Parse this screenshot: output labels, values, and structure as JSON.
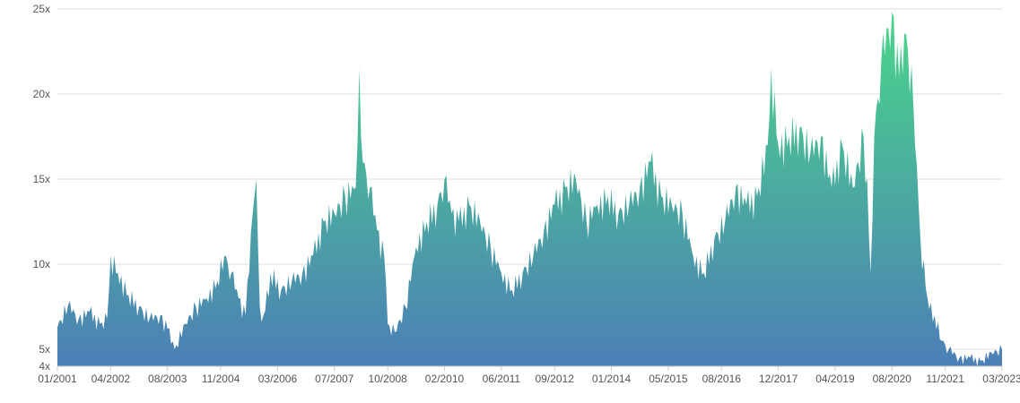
{
  "chart_data": {
    "type": "area",
    "title": "",
    "xlabel": "",
    "ylabel": "",
    "ylim": [
      4,
      25
    ],
    "y_ticks": [
      {
        "value": 25,
        "label": "25x"
      },
      {
        "value": 20,
        "label": "20x"
      },
      {
        "value": 15,
        "label": "15x"
      },
      {
        "value": 10,
        "label": "10x"
      },
      {
        "value": 5,
        "label": "5x"
      },
      {
        "value": 4,
        "label": "4x"
      }
    ],
    "x_ticks": [
      "01/2001",
      "04/2002",
      "08/2003",
      "11/2004",
      "03/2006",
      "07/2007",
      "10/2008",
      "02/2010",
      "06/2011",
      "09/2012",
      "01/2014",
      "05/2015",
      "08/2016",
      "12/2017",
      "04/2019",
      "08/2020",
      "11/2021",
      "03/2023"
    ],
    "grid": true,
    "legend": "none",
    "gradient": {
      "top": "#4ad68a",
      "bottom": "#4c7fb6"
    },
    "series": [
      {
        "x": [
          "2001-01",
          "2001-04",
          "2001-07",
          "2001-10",
          "2002-01",
          "2002-03",
          "2002-04",
          "2002-06",
          "2002-09",
          "2002-12",
          "2003-03",
          "2003-06",
          "2003-08",
          "2003-10",
          "2004-01",
          "2004-04",
          "2004-07",
          "2004-10",
          "2004-12",
          "2005-02",
          "2005-04",
          "2005-06",
          "2005-08",
          "2005-09",
          "2005-10",
          "2005-11",
          "2006-01",
          "2006-04",
          "2006-07",
          "2006-10",
          "2007-01",
          "2007-04",
          "2007-07",
          "2007-10",
          "2008-01",
          "2008-02",
          "2008-03",
          "2008-05",
          "2008-07",
          "2008-09",
          "2008-10",
          "2008-12",
          "2009-03",
          "2009-06",
          "2009-09",
          "2009-12",
          "2010-02",
          "2010-04",
          "2010-06",
          "2010-09",
          "2010-12",
          "2011-03",
          "2011-06",
          "2011-09",
          "2011-12",
          "2012-03",
          "2012-06",
          "2012-09",
          "2012-12",
          "2013-03",
          "2013-06",
          "2013-09",
          "2013-12",
          "2014-03",
          "2014-06",
          "2014-09",
          "2014-12",
          "2015-03",
          "2015-06",
          "2015-09",
          "2015-12",
          "2016-03",
          "2016-06",
          "2016-09",
          "2016-12",
          "2017-03",
          "2017-06",
          "2017-09",
          "2017-10",
          "2017-12",
          "2018-03",
          "2018-06",
          "2018-09",
          "2018-12",
          "2019-03",
          "2019-06",
          "2019-09",
          "2019-12",
          "2020-01",
          "2020-02",
          "2020-03",
          "2020-05",
          "2020-08",
          "2020-10",
          "2020-12",
          "2021-02",
          "2021-04",
          "2021-06",
          "2021-08",
          "2021-10",
          "2021-12",
          "2022-03",
          "2022-06",
          "2022-09",
          "2022-12",
          "2023-03"
        ],
        "values": [
          6.3,
          7.6,
          6.8,
          7.2,
          6.5,
          6.8,
          10.5,
          9.5,
          8.2,
          7.5,
          6.8,
          7.0,
          6.2,
          5.0,
          6.5,
          7.5,
          8.0,
          9.0,
          10.5,
          9.5,
          8.0,
          7.0,
          13.0,
          15.0,
          7.5,
          7.0,
          9.5,
          8.5,
          9.0,
          9.5,
          10.5,
          12.5,
          13.0,
          14.0,
          14.5,
          21.5,
          16.0,
          14.5,
          12.0,
          10.5,
          6.5,
          6.0,
          7.5,
          11.0,
          12.5,
          13.5,
          15.0,
          13.0,
          12.5,
          13.5,
          12.5,
          11.0,
          9.5,
          8.5,
          9.5,
          10.5,
          12.0,
          13.5,
          14.5,
          15.0,
          12.5,
          13.5,
          14.0,
          13.0,
          13.5,
          14.5,
          16.0,
          14.0,
          13.5,
          13.0,
          10.5,
          9.5,
          11.5,
          12.5,
          14.5,
          13.5,
          14.0,
          17.0,
          21.5,
          17.0,
          17.5,
          18.0,
          16.5,
          17.5,
          14.5,
          17.0,
          14.5,
          17.5,
          15.0,
          9.5,
          17.5,
          22.0,
          24.8,
          21.0,
          23.5,
          19.5,
          11.5,
          8.0,
          7.0,
          5.5,
          5.0,
          4.5,
          4.5,
          4.3,
          4.8,
          5.0
        ]
      }
    ]
  }
}
